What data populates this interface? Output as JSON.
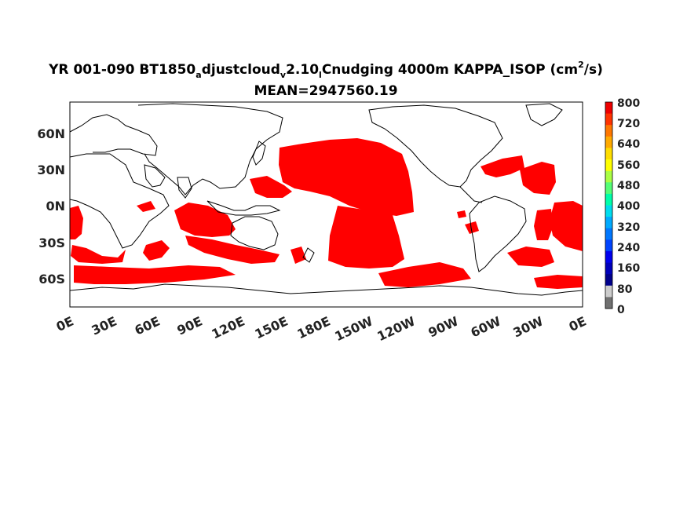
{
  "title": {
    "part1": "YR 001-090 BT1850",
    "sub1": "a",
    "part2": "djustcloud",
    "sub2": "v",
    "part3": "2.10",
    "sub3": "l",
    "part4": "Cnudging 4000m KAPPA_ISOP (cm",
    "sup": "2",
    "part5": "/s)",
    "mean": "MEAN=2947560.19"
  },
  "map": {
    "type": "filled-contour-map",
    "variable": "KAPPA_ISOP",
    "depth": "4000m",
    "lon_ticks": [
      "0E",
      "30E",
      "60E",
      "90E",
      "120E",
      "150E",
      "180E",
      "150W",
      "120W",
      "90W",
      "60W",
      "30W",
      "0E"
    ],
    "lat_ticks": [
      "60N",
      "30N",
      "0N",
      "30S",
      "60S"
    ],
    "lon_range": [
      0,
      360
    ],
    "lat_range": [
      -78,
      84
    ],
    "fill_color": "#ff0000",
    "land_color": "#ffffff"
  },
  "colorbar": {
    "ticks": [
      "800",
      "720",
      "640",
      "560",
      "480",
      "400",
      "320",
      "240",
      "160",
      "80",
      "0"
    ],
    "colors": [
      "#ee0000",
      "#ff3300",
      "#ff7700",
      "#ffaa00",
      "#ffdd00",
      "#ffff00",
      "#aaff44",
      "#55ff77",
      "#00ffaa",
      "#00ddee",
      "#00aaff",
      "#0077ff",
      "#0044ff",
      "#0000ee",
      "#0000bb",
      "#00008b",
      "#cccccc",
      "#707070"
    ]
  }
}
